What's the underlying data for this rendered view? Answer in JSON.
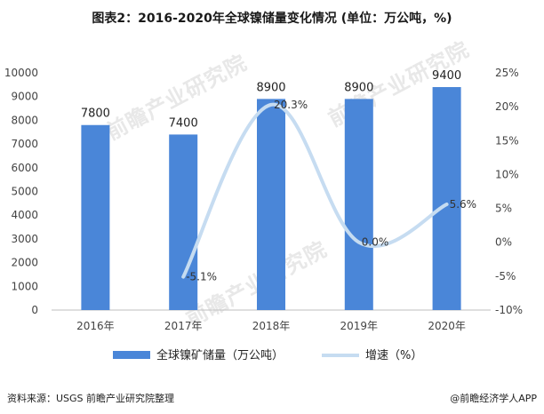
{
  "header": {
    "title": "图表2：2016-2020年全球镍储量变化情况 (单位：万公吨，%)"
  },
  "footer": {
    "source": "资料来源：USGS 前瞻产业研究院整理",
    "brand": "@前瞻经济学人APP"
  },
  "watermark": "前瞻产业研究院",
  "colors": {
    "bar": "#4a86d8",
    "line": "#c6dcf1",
    "axis_text": "#444444"
  },
  "chart_data": {
    "type": "bar",
    "title": "图表2：2016-2020年全球镍储量变化情况 (单位：万公吨，%)",
    "categories": [
      "2016年",
      "2017年",
      "2018年",
      "2019年",
      "2020年"
    ],
    "series": [
      {
        "name": "全球镍矿储量（万公吨）",
        "type": "bar",
        "axis": "left",
        "values": [
          7800,
          7400,
          8900,
          8900,
          9400
        ],
        "labels": [
          "7800",
          "7400",
          "8900",
          "8900",
          "9400"
        ]
      },
      {
        "name": "增速（%）",
        "type": "line",
        "smooth": true,
        "axis": "right",
        "values": [
          null,
          -5.1,
          20.3,
          0.0,
          5.6
        ],
        "labels": [
          "",
          "-5.1%",
          "20.3%",
          "0.0%",
          "5.6%"
        ]
      }
    ],
    "y_left": {
      "min": 0,
      "max": 10000,
      "ticks": [
        "0",
        "1000",
        "2000",
        "3000",
        "4000",
        "5000",
        "6000",
        "7000",
        "8000",
        "9000",
        "10000"
      ]
    },
    "y_right": {
      "min": -10,
      "max": 25,
      "ticks": [
        "-10%",
        "-5%",
        "0%",
        "5%",
        "10%",
        "15%",
        "20%",
        "25%"
      ]
    },
    "grid": false,
    "legend_position": "bottom"
  }
}
